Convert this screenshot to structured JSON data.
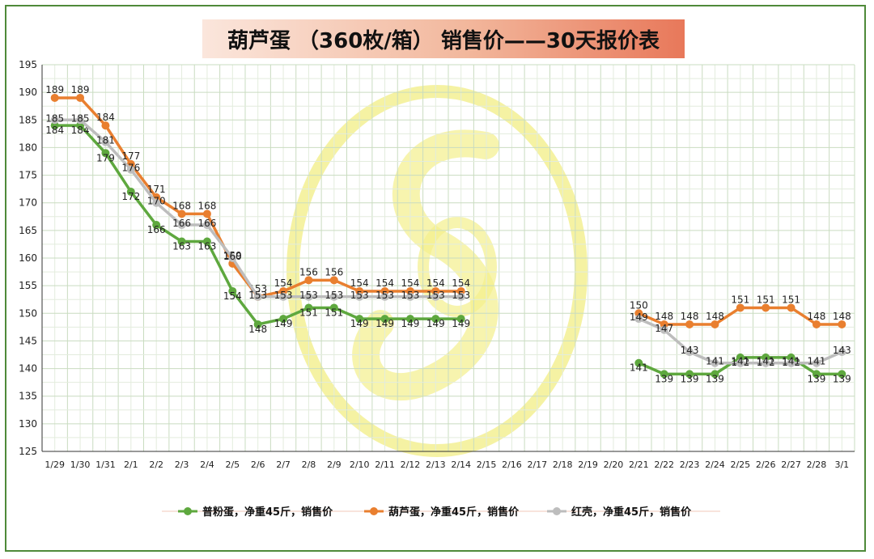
{
  "title": "葫芦蛋 （360枚/箱） 销售价——30天报价表",
  "colors": {
    "green": "#5ea83e",
    "orange": "#e97f2f",
    "gray": "#bdbdbd",
    "frame": "#4f8a3a",
    "watermark": "#f3ef8c"
  },
  "chart_data": {
    "type": "line",
    "x": [
      "1/29",
      "1/30",
      "1/31",
      "2/1",
      "2/2",
      "2/3",
      "2/4",
      "2/5",
      "2/6",
      "2/7",
      "2/8",
      "2/9",
      "2/10",
      "2/11",
      "2/12",
      "2/13",
      "2/14",
      "2/15",
      "2/16",
      "2/17",
      "2/18",
      "2/19",
      "2/20",
      "2/21",
      "2/22",
      "2/23",
      "2/24",
      "2/25",
      "2/26",
      "2/27",
      "2/28",
      "3/1"
    ],
    "ylim": [
      125,
      195
    ],
    "yticks": [
      125,
      130,
      135,
      140,
      145,
      150,
      155,
      160,
      165,
      170,
      175,
      180,
      185,
      190,
      195
    ],
    "grid": true,
    "legend_position": "bottom",
    "series": [
      {
        "name": "普粉蛋，净重45斤，销售价",
        "color": "#5ea83e",
        "values": [
          184,
          184,
          179,
          172,
          166,
          163,
          163,
          154,
          148,
          149,
          151,
          151,
          149,
          149,
          149,
          149,
          149,
          null,
          null,
          null,
          null,
          null,
          null,
          141,
          139,
          139,
          139,
          142,
          142,
          142,
          139,
          139
        ]
      },
      {
        "name": "葫芦蛋，净重45斤，销售价",
        "color": "#e97f2f",
        "values": [
          189,
          189,
          184,
          177,
          171,
          168,
          168,
          159,
          153,
          154,
          156,
          156,
          154,
          154,
          154,
          154,
          154,
          null,
          null,
          null,
          null,
          null,
          null,
          150,
          148,
          148,
          148,
          151,
          151,
          151,
          148,
          148
        ]
      },
      {
        "name": "红壳，净重45斤，销售价",
        "color": "#bdbdbd",
        "values": [
          185,
          185,
          181,
          176,
          170,
          166,
          166,
          160,
          153,
          153,
          153,
          153,
          153,
          153,
          153,
          153,
          153,
          null,
          null,
          null,
          null,
          null,
          null,
          149,
          147,
          143,
          141,
          141,
          141,
          141,
          141,
          143
        ]
      }
    ]
  }
}
